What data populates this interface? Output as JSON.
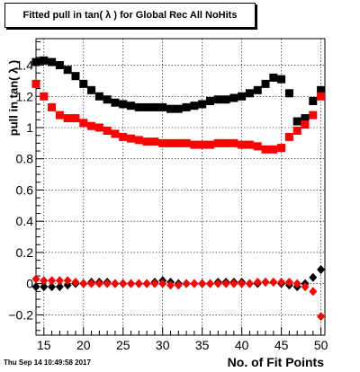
{
  "title": "Fitted pull in tan( λ ) for Global Rec All NoHits",
  "datestamp": "Thu Sep 14 10:49:58 2017",
  "chart_data": {
    "type": "scatter",
    "title": "Fitted pull in tan( λ ) for Global Rec All NoHits",
    "xlabel": "No. of Fit Points",
    "ylabel": "pull in tan( λ )",
    "xlim": [
      14,
      50.5
    ],
    "ylim": [
      -0.33,
      1.57
    ],
    "xticks": [
      15,
      20,
      25,
      30,
      35,
      40,
      45,
      50
    ],
    "yticks": [
      -0.2,
      0,
      0.2,
      0.4,
      0.6,
      0.8,
      1,
      1.2,
      1.4
    ],
    "ytick_labels": [
      "−0.2",
      "0",
      "0.2",
      "0.4",
      "0.6",
      "0.8",
      "1",
      "1.2",
      "1.4"
    ],
    "grid": true,
    "series": [
      {
        "color": "#000000",
        "marker": "square",
        "x": [
          14,
          15,
          16,
          17,
          18,
          19,
          20,
          21,
          22,
          23,
          24,
          25,
          26,
          27,
          28,
          29,
          30,
          31,
          32,
          33,
          34,
          35,
          36,
          37,
          38,
          39,
          40,
          41,
          42,
          43,
          44,
          45,
          46,
          47,
          48,
          49,
          50
        ],
        "y": [
          1.42,
          1.43,
          1.42,
          1.4,
          1.37,
          1.33,
          1.28,
          1.24,
          1.2,
          1.18,
          1.16,
          1.15,
          1.14,
          1.13,
          1.13,
          1.13,
          1.13,
          1.12,
          1.12,
          1.13,
          1.14,
          1.15,
          1.17,
          1.18,
          1.18,
          1.19,
          1.2,
          1.22,
          1.24,
          1.28,
          1.32,
          1.31,
          1.22,
          1.04,
          1.06,
          1.17,
          1.24
        ]
      },
      {
        "color": "#ff0000",
        "marker": "square",
        "x": [
          14,
          15,
          16,
          17,
          18,
          19,
          20,
          21,
          22,
          23,
          24,
          25,
          26,
          27,
          28,
          29,
          30,
          31,
          32,
          33,
          34,
          35,
          36,
          37,
          38,
          39,
          40,
          41,
          42,
          43,
          44,
          45,
          46,
          47,
          48,
          49,
          50
        ],
        "y": [
          1.28,
          1.2,
          1.13,
          1.08,
          1.06,
          1.06,
          1.03,
          1.01,
          1.0,
          0.98,
          0.96,
          0.94,
          0.93,
          0.92,
          0.91,
          0.91,
          0.9,
          0.9,
          0.9,
          0.9,
          0.89,
          0.89,
          0.89,
          0.9,
          0.9,
          0.9,
          0.89,
          0.89,
          0.88,
          0.86,
          0.86,
          0.87,
          0.94,
          0.98,
          1.02,
          1.08,
          1.2
        ]
      },
      {
        "color": "#000000",
        "marker": "diamond",
        "x": [
          14,
          15,
          16,
          17,
          18,
          19,
          20,
          21,
          22,
          23,
          24,
          25,
          26,
          27,
          28,
          29,
          30,
          31,
          32,
          33,
          34,
          35,
          36,
          37,
          38,
          39,
          40,
          41,
          42,
          43,
          44,
          45,
          46,
          47,
          48,
          49,
          50
        ],
        "y": [
          -0.02,
          -0.02,
          -0.02,
          -0.02,
          -0.01,
          0.0,
          0.0,
          0.01,
          0.01,
          0.01,
          0.0,
          0.0,
          0.0,
          0.0,
          0.0,
          0.01,
          0.02,
          0.01,
          0.0,
          0.0,
          0.0,
          0.0,
          0.0,
          0.01,
          0.01,
          0.01,
          0.01,
          0.0,
          0.0,
          0.01,
          0.01,
          0.0,
          -0.01,
          -0.02,
          0.0,
          0.04,
          0.09
        ]
      },
      {
        "color": "#ff0000",
        "marker": "diamond",
        "x": [
          14,
          15,
          16,
          17,
          18,
          19,
          20,
          21,
          22,
          23,
          24,
          25,
          26,
          27,
          28,
          29,
          30,
          31,
          32,
          33,
          34,
          35,
          36,
          37,
          38,
          39,
          40,
          41,
          42,
          43,
          44,
          45,
          46,
          47,
          48,
          49,
          50
        ],
        "y": [
          0.03,
          0.02,
          0.02,
          0.02,
          0.02,
          0.01,
          0.0,
          0.0,
          0.0,
          0.0,
          0.0,
          0.0,
          0.0,
          0.0,
          0.0,
          0.0,
          0.0,
          -0.01,
          -0.01,
          0.0,
          0.0,
          0.0,
          0.0,
          0.0,
          0.0,
          0.0,
          0.0,
          0.0,
          0.01,
          0.01,
          0.01,
          0.01,
          0.01,
          0.0,
          -0.02,
          -0.05,
          -0.21
        ]
      }
    ]
  }
}
